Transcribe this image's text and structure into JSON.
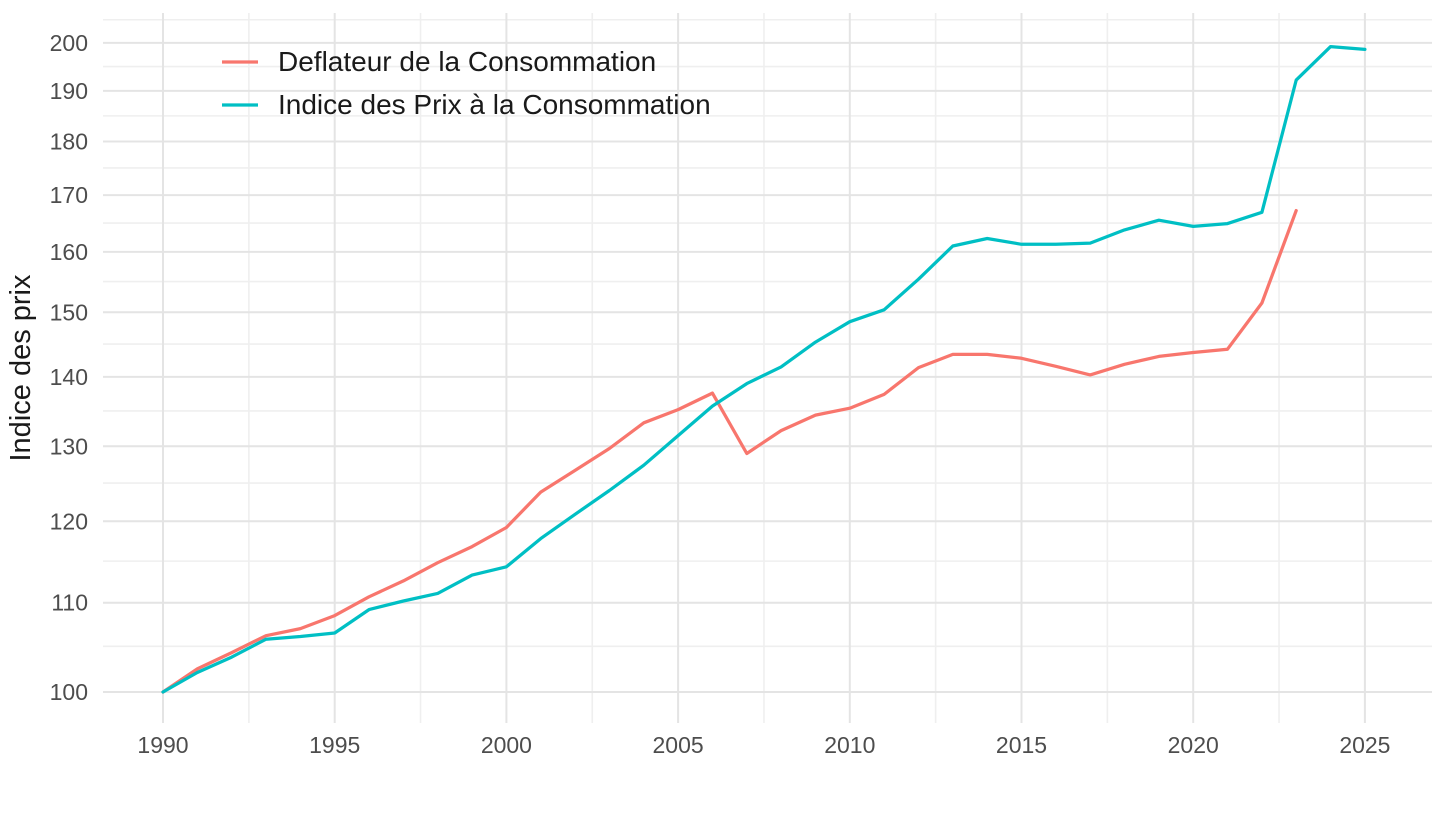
{
  "figure": {
    "background": "#ffffff",
    "y_axis_title": "Indice des prix"
  },
  "legend": {
    "position": "top-left-inside",
    "entries": [
      {
        "label": "Deflateur de la Consommation",
        "color": "#F8766D"
      },
      {
        "label": "Indice des Prix à la Consommation",
        "color": "#00BFC4"
      }
    ]
  },
  "chart_data": {
    "type": "line",
    "title": "",
    "xlabel": "",
    "ylabel": "Indice des prix",
    "y_scale": "log",
    "grid": true,
    "x_range": [
      1988.25,
      2026.75
    ],
    "y_range": [
      96.6,
      206.5
    ],
    "x_ticks": [
      1990,
      1995,
      2000,
      2005,
      2010,
      2015,
      2020,
      2025
    ],
    "x_minor_ticks": [
      1992.5,
      1997.5,
      2002.5,
      2007.5,
      2012.5,
      2017.5,
      2022.5
    ],
    "y_ticks": [
      100,
      110,
      120,
      130,
      140,
      150,
      160,
      170,
      180,
      190,
      200
    ],
    "y_minor_ticks": [
      105,
      115,
      125,
      135,
      145,
      155,
      165,
      175,
      185,
      195,
      205
    ],
    "series": [
      {
        "name": "Deflateur de la Consommation",
        "color": "#F8766D",
        "x": [
          1990,
          1991,
          1992,
          1993,
          1994,
          1995,
          1996,
          1997,
          1998,
          1999,
          2000,
          2001,
          2002,
          2003,
          2004,
          2005,
          2006,
          2007,
          2008,
          2009,
          2010,
          2011,
          2012,
          2013,
          2014,
          2015,
          2016,
          2017,
          2018,
          2019,
          2020,
          2021,
          2022,
          2023
        ],
        "values": [
          100,
          102.5,
          104.3,
          106.2,
          107.0,
          108.5,
          110.7,
          112.6,
          114.8,
          116.8,
          119.2,
          123.8,
          126.7,
          129.7,
          133.3,
          135.2,
          137.6,
          129.0,
          132.2,
          134.4,
          135.4,
          137.4,
          141.4,
          143.4,
          143.4,
          142.8,
          141.6,
          140.3,
          141.9,
          143.1,
          143.7,
          144.2,
          151.5,
          167.2
        ]
      },
      {
        "name": "Indice des Prix à la Consommation",
        "color": "#00BFC4",
        "x": [
          1990,
          1991,
          1992,
          1993,
          1994,
          1995,
          1996,
          1997,
          1998,
          1999,
          2000,
          2001,
          2002,
          2003,
          2004,
          2005,
          2006,
          2007,
          2008,
          2009,
          2010,
          2011,
          2012,
          2013,
          2014,
          2015,
          2016,
          2017,
          2018,
          2019,
          2020,
          2021,
          2022,
          2023,
          2024,
          2025
        ],
        "values": [
          100,
          102.1,
          103.8,
          105.8,
          106.1,
          106.5,
          109.2,
          110.2,
          111.1,
          113.3,
          114.3,
          117.8,
          120.9,
          124.0,
          127.4,
          131.5,
          135.7,
          139.0,
          141.5,
          145.3,
          148.5,
          150.4,
          155.4,
          161.0,
          162.3,
          161.3,
          161.3,
          161.5,
          163.8,
          165.5,
          164.4,
          164.9,
          166.9,
          192.2,
          199.2,
          198.6
        ]
      }
    ]
  },
  "style_tokens": {
    "grid_major_color": "#E4E4E4",
    "grid_minor_color": "#EFEFEF",
    "tick_label_color": "#4D4D4D",
    "axis_title_color": "#1a1a1a",
    "legend_text_color": "#1a1a1a"
  }
}
